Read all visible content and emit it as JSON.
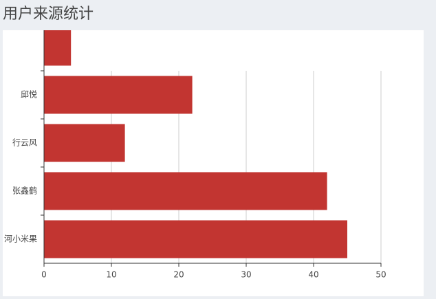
{
  "chart_data": {
    "type": "hbar",
    "title": "用户来源统计",
    "categories": [
      "河小米果",
      "张鑫鹤",
      "行云风",
      "邱悦",
      null
    ],
    "values": [
      45,
      42,
      12,
      22,
      4
    ],
    "color": "#c23531",
    "xlim": [
      0,
      50
    ],
    "xticks": [
      0,
      10,
      20,
      30,
      40,
      50
    ],
    "grid": true
  }
}
